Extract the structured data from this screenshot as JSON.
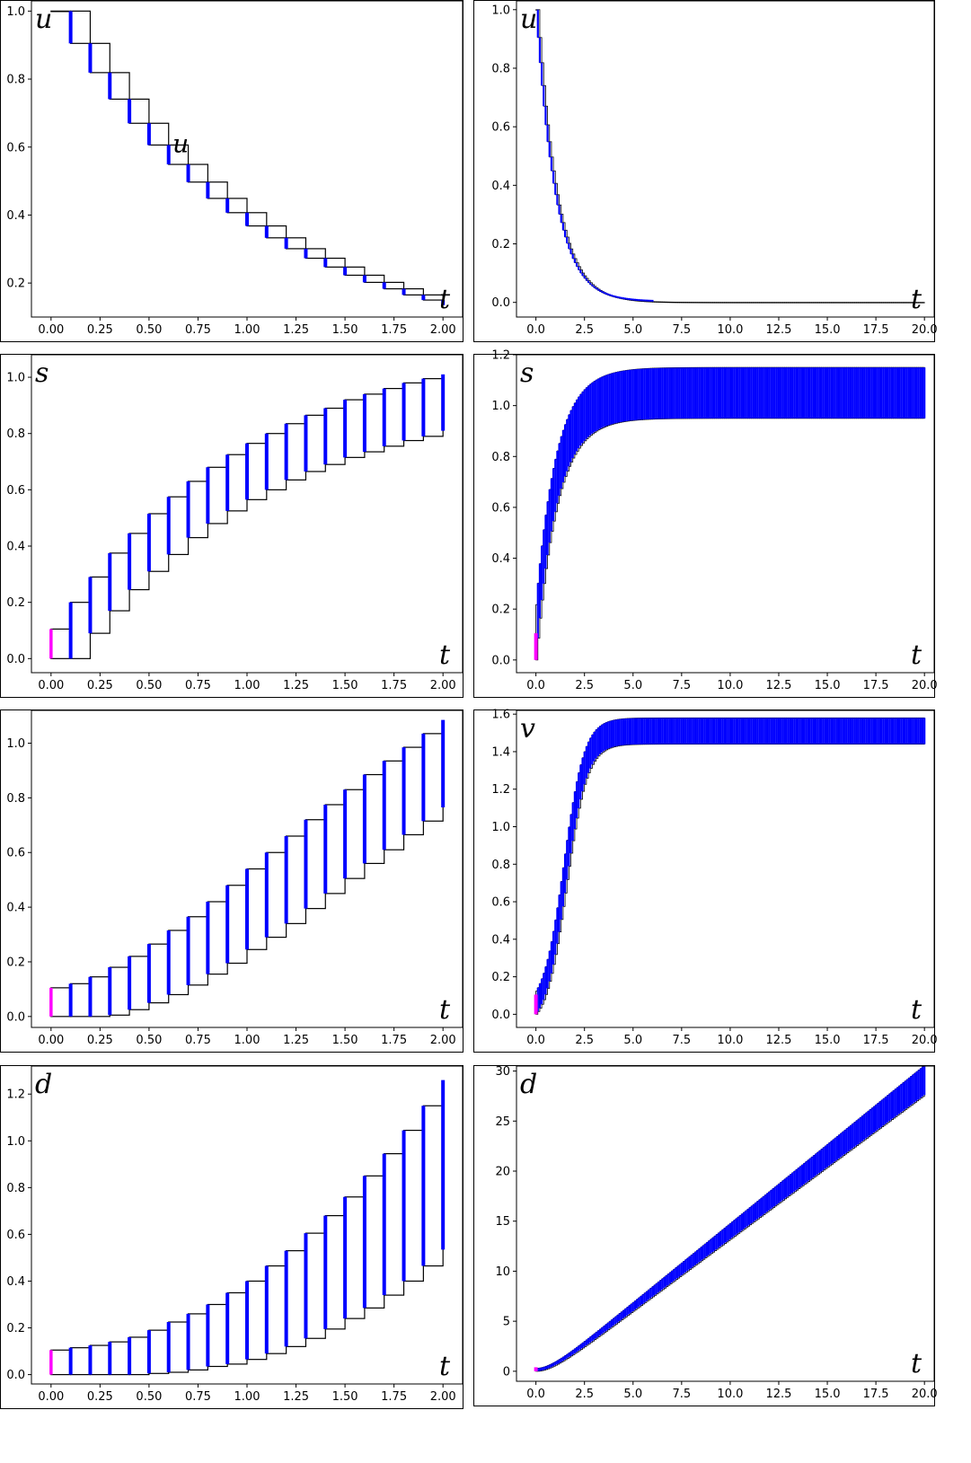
{
  "colors": {
    "box": "#000000",
    "interval": "#0000ff",
    "initial": "#ff00ff"
  },
  "chart_data": [
    {
      "id": "u_short",
      "type": "line",
      "xlabel": "t",
      "ylabel": "u",
      "y_label_shown": true,
      "xlim": [
        -0.1,
        2.1
      ],
      "ylim": [
        0.1,
        1.03
      ],
      "xticks": [
        0,
        0.25,
        0.5,
        0.75,
        1,
        1.25,
        1.5,
        1.75,
        2
      ],
      "xtick_labels": [
        "0.00",
        "0.25",
        "0.50",
        "0.75",
        "1.00",
        "1.25",
        "1.50",
        "1.75",
        "2.00"
      ],
      "yticks": [
        0.2,
        0.4,
        0.6,
        0.8,
        1.0
      ],
      "ytick_labels": [
        "0.2",
        "0.4",
        "0.6",
        "0.8",
        "1.0"
      ],
      "annotations": [
        {
          "text": "u",
          "x": 0.62,
          "y": 0.585
        }
      ],
      "series": {
        "t": [
          0,
          0.1,
          0.2,
          0.3,
          0.4,
          0.5,
          0.6,
          0.7,
          0.8,
          0.9,
          1.0,
          1.1,
          1.2,
          1.3,
          1.4,
          1.5,
          1.6,
          1.7,
          1.8,
          1.9,
          2.0
        ],
        "lower": [
          1.0,
          0.905,
          0.819,
          0.741,
          0.67,
          0.606,
          0.549,
          0.497,
          0.449,
          0.407,
          0.368,
          0.333,
          0.301,
          0.273,
          0.247,
          0.223,
          0.202,
          0.183,
          0.165,
          0.15,
          0.135
        ],
        "upper": [
          1.0,
          1.0,
          0.905,
          0.819,
          0.741,
          0.67,
          0.606,
          0.549,
          0.497,
          0.449,
          0.407,
          0.368,
          0.333,
          0.301,
          0.273,
          0.247,
          0.223,
          0.202,
          0.183,
          0.165,
          0.15
        ]
      }
    },
    {
      "id": "u_long",
      "type": "line",
      "xlabel": "t",
      "ylabel": "u",
      "y_label_shown": true,
      "xlim": [
        -1,
        20.5
      ],
      "ylim": [
        -0.05,
        1.03
      ],
      "xticks": [
        0,
        2.5,
        5,
        7.5,
        10,
        12.5,
        15,
        17.5,
        20
      ],
      "xtick_labels": [
        "0.0",
        "2.5",
        "5.0",
        "7.5",
        "10.0",
        "12.5",
        "15.0",
        "17.5",
        "20.0"
      ],
      "yticks": [
        0,
        0.2,
        0.4,
        0.6,
        0.8,
        1.0
      ],
      "ytick_labels": [
        "0.0",
        "0.2",
        "0.4",
        "0.6",
        "0.8",
        "1.0"
      ],
      "series": {
        "model": "exp_decay",
        "rate": 1.0,
        "t_end": 20,
        "dt": 0.1,
        "interval_until": 6
      }
    },
    {
      "id": "s_short",
      "type": "line",
      "xlabel": "t",
      "ylabel": "s",
      "y_label_shown": true,
      "xlim": [
        -0.1,
        2.1
      ],
      "ylim": [
        -0.05,
        1.08
      ],
      "xticks": [
        0,
        0.25,
        0.5,
        0.75,
        1,
        1.25,
        1.5,
        1.75,
        2
      ],
      "xtick_labels": [
        "0.00",
        "0.25",
        "0.50",
        "0.75",
        "1.00",
        "1.25",
        "1.50",
        "1.75",
        "2.00"
      ],
      "yticks": [
        0,
        0.2,
        0.4,
        0.6,
        0.8,
        1.0
      ],
      "ytick_labels": [
        "0.0",
        "0.2",
        "0.4",
        "0.6",
        "0.8",
        "1.0"
      ],
      "initial": [
        0,
        0.105
      ],
      "series": {
        "t": [
          0,
          0.1,
          0.2,
          0.3,
          0.4,
          0.5,
          0.6,
          0.7,
          0.8,
          0.9,
          1.0,
          1.1,
          1.2,
          1.3,
          1.4,
          1.5,
          1.6,
          1.7,
          1.8,
          1.9,
          2.0
        ],
        "lower": [
          0,
          0,
          0.09,
          0.17,
          0.245,
          0.31,
          0.37,
          0.43,
          0.48,
          0.525,
          0.565,
          0.6,
          0.635,
          0.665,
          0.69,
          0.715,
          0.735,
          0.755,
          0.775,
          0.79,
          0.81
        ],
        "upper": [
          0.105,
          0.2,
          0.29,
          0.375,
          0.445,
          0.515,
          0.575,
          0.63,
          0.68,
          0.725,
          0.765,
          0.8,
          0.835,
          0.865,
          0.89,
          0.92,
          0.94,
          0.96,
          0.98,
          0.995,
          1.01
        ]
      }
    },
    {
      "id": "s_long",
      "type": "line",
      "xlabel": "t",
      "ylabel": "s",
      "y_label_shown": true,
      "xlim": [
        -1,
        20.5
      ],
      "ylim": [
        -0.05,
        1.2
      ],
      "xticks": [
        0,
        2.5,
        5,
        7.5,
        10,
        12.5,
        15,
        17.5,
        20
      ],
      "xtick_labels": [
        "0.0",
        "2.5",
        "5.0",
        "7.5",
        "10.0",
        "12.5",
        "15.0",
        "17.5",
        "20.0"
      ],
      "yticks": [
        0,
        0.2,
        0.4,
        0.6,
        0.8,
        1.0,
        1.2
      ],
      "ytick_labels": [
        "0.0",
        "0.2",
        "0.4",
        "0.6",
        "0.8",
        "1.0",
        "1.2"
      ],
      "initial": [
        0,
        0.105
      ],
      "series": {
        "model": "saturating",
        "lower_inf": 0.95,
        "upper_inf": 1.15,
        "rate": 0.95,
        "t_end": 20,
        "dt": 0.1
      }
    },
    {
      "id": "v_short",
      "type": "line",
      "xlabel": "t",
      "ylabel": "v",
      "y_label_shown": false,
      "xlim": [
        -0.1,
        2.1
      ],
      "ylim": [
        -0.04,
        1.12
      ],
      "xticks": [
        0,
        0.25,
        0.5,
        0.75,
        1,
        1.25,
        1.5,
        1.75,
        2
      ],
      "xtick_labels": [
        "0.00",
        "0.25",
        "0.50",
        "0.75",
        "1.00",
        "1.25",
        "1.50",
        "1.75",
        "2.00"
      ],
      "yticks": [
        0,
        0.2,
        0.4,
        0.6,
        0.8,
        1.0
      ],
      "ytick_labels": [
        "0.0",
        "0.2",
        "0.4",
        "0.6",
        "0.8",
        "1.0"
      ],
      "initial": [
        0,
        0.105
      ],
      "series": {
        "t": [
          0,
          0.1,
          0.2,
          0.3,
          0.4,
          0.5,
          0.6,
          0.7,
          0.8,
          0.9,
          1.0,
          1.1,
          1.2,
          1.3,
          1.4,
          1.5,
          1.6,
          1.7,
          1.8,
          1.9,
          2.0
        ],
        "lower": [
          0,
          0,
          0,
          0.005,
          0.025,
          0.05,
          0.08,
          0.115,
          0.155,
          0.195,
          0.245,
          0.29,
          0.34,
          0.395,
          0.45,
          0.505,
          0.56,
          0.61,
          0.665,
          0.715,
          0.765
        ],
        "upper": [
          0.105,
          0.12,
          0.145,
          0.18,
          0.22,
          0.265,
          0.315,
          0.365,
          0.42,
          0.48,
          0.54,
          0.6,
          0.66,
          0.72,
          0.775,
          0.83,
          0.885,
          0.935,
          0.985,
          1.035,
          1.085
        ]
      }
    },
    {
      "id": "v_long",
      "type": "line",
      "xlabel": "t",
      "ylabel": "v",
      "y_label_shown": true,
      "xlim": [
        -1,
        20.5
      ],
      "ylim": [
        -0.07,
        1.62
      ],
      "xticks": [
        0,
        2.5,
        5,
        7.5,
        10,
        12.5,
        15,
        17.5,
        20
      ],
      "xtick_labels": [
        "0.0",
        "2.5",
        "5.0",
        "7.5",
        "10.0",
        "12.5",
        "15.0",
        "17.5",
        "20.0"
      ],
      "yticks": [
        0,
        0.2,
        0.4,
        0.6,
        0.8,
        1.0,
        1.2,
        1.4,
        1.6
      ],
      "ytick_labels": [
        "0.0",
        "0.2",
        "0.4",
        "0.6",
        "0.8",
        "1.0",
        "1.2",
        "1.4",
        "1.6"
      ],
      "initial": [
        0,
        0.105
      ],
      "series": {
        "model": "sigmoid",
        "lower_inf": 1.44,
        "upper_inf": 1.58,
        "mid": 1.55,
        "rate": 1.9,
        "t_end": 20,
        "dt": 0.1
      }
    },
    {
      "id": "d_short",
      "type": "line",
      "xlabel": "t",
      "ylabel": "d",
      "y_label_shown": true,
      "xlim": [
        -0.1,
        2.1
      ],
      "ylim": [
        -0.04,
        1.32
      ],
      "xticks": [
        0,
        0.25,
        0.5,
        0.75,
        1,
        1.25,
        1.5,
        1.75,
        2
      ],
      "xtick_labels": [
        "0.00",
        "0.25",
        "0.50",
        "0.75",
        "1.00",
        "1.25",
        "1.50",
        "1.75",
        "2.00"
      ],
      "yticks": [
        0,
        0.2,
        0.4,
        0.6,
        0.8,
        1.0,
        1.2
      ],
      "ytick_labels": [
        "0.0",
        "0.2",
        "0.4",
        "0.6",
        "0.8",
        "1.0",
        "1.2"
      ],
      "initial": [
        0,
        0.105
      ],
      "series": {
        "t": [
          0,
          0.1,
          0.2,
          0.3,
          0.4,
          0.5,
          0.6,
          0.7,
          0.8,
          0.9,
          1.0,
          1.1,
          1.2,
          1.3,
          1.4,
          1.5,
          1.6,
          1.7,
          1.8,
          1.9,
          2.0
        ],
        "lower": [
          0,
          0,
          0,
          0,
          0,
          0.005,
          0.01,
          0.02,
          0.035,
          0.045,
          0.065,
          0.09,
          0.12,
          0.155,
          0.195,
          0.24,
          0.285,
          0.34,
          0.4,
          0.465,
          0.535
        ],
        "upper": [
          0.105,
          0.115,
          0.125,
          0.14,
          0.16,
          0.19,
          0.225,
          0.26,
          0.3,
          0.35,
          0.4,
          0.465,
          0.53,
          0.605,
          0.68,
          0.76,
          0.85,
          0.945,
          1.045,
          1.15,
          1.26
        ]
      }
    },
    {
      "id": "d_long",
      "type": "line",
      "xlabel": "t",
      "ylabel": "d",
      "y_label_shown": true,
      "xlim": [
        -1,
        20.5
      ],
      "ylim": [
        -1,
        30.5
      ],
      "xticks": [
        0,
        2.5,
        5,
        7.5,
        10,
        12.5,
        15,
        17.5,
        20
      ],
      "xtick_labels": [
        "0.0",
        "2.5",
        "5.0",
        "7.5",
        "10.0",
        "12.5",
        "15.0",
        "17.5",
        "20.0"
      ],
      "yticks": [
        0,
        5,
        10,
        15,
        20,
        25,
        30
      ],
      "ytick_labels": [
        "0",
        "5",
        "10",
        "15",
        "20",
        "25",
        "30"
      ],
      "initial": [
        0,
        0.4
      ],
      "series": {
        "model": "ramp",
        "lower_slope": 1.44,
        "upper_slope": 1.58,
        "t_end": 20,
        "dt": 0.1
      }
    }
  ]
}
